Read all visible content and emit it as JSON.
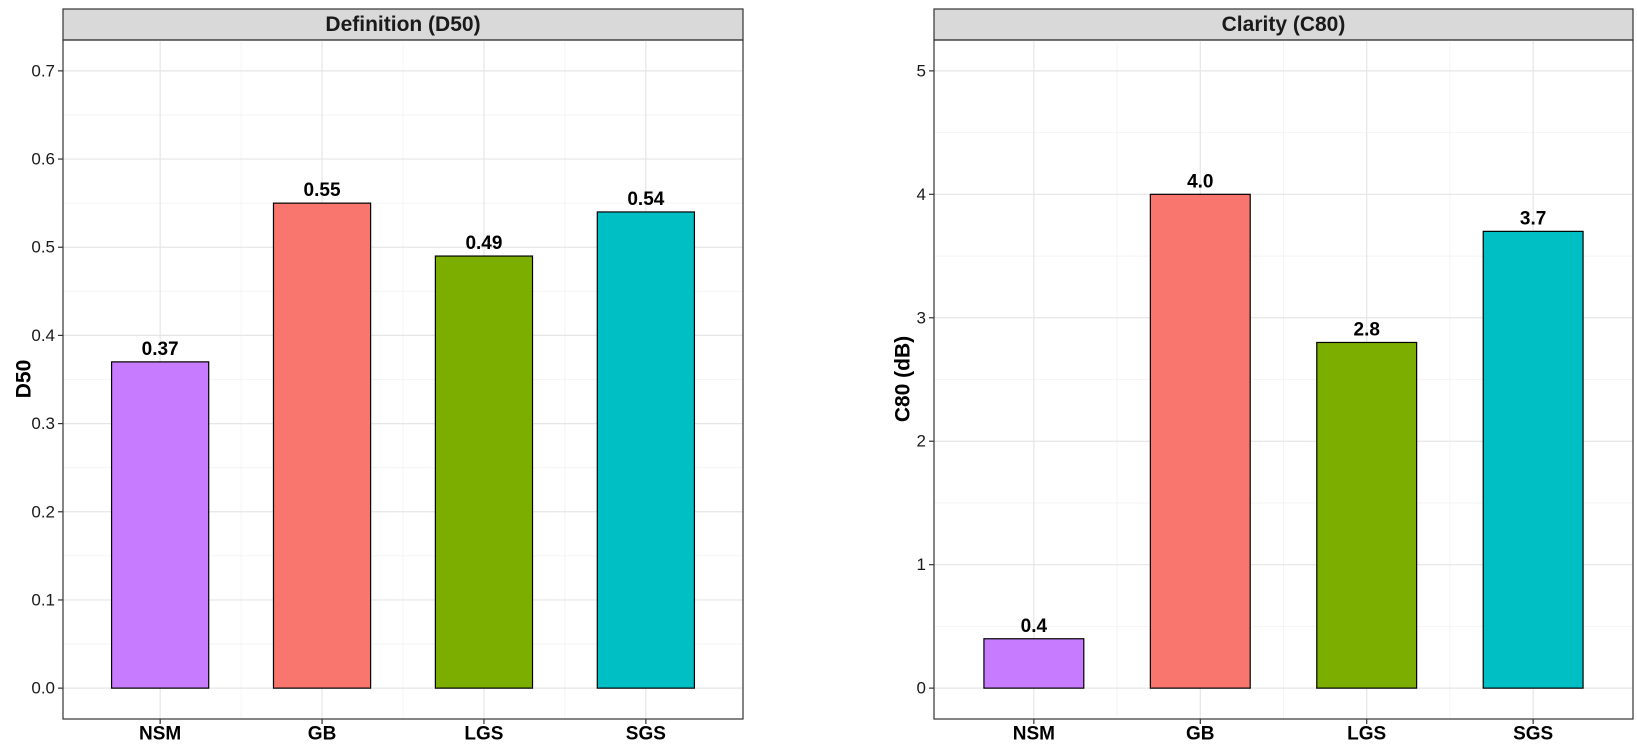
{
  "chart_data": [
    {
      "type": "bar",
      "title": "Definition (D50)",
      "ylabel": "D50",
      "categories": [
        "NSM",
        "GB",
        "LGS",
        "SGS"
      ],
      "values": [
        0.37,
        0.55,
        0.49,
        0.54
      ],
      "value_labels": [
        "0.37",
        "0.55",
        "0.49",
        "0.54"
      ],
      "colors": [
        "#C77CFF",
        "#F8766D",
        "#7CAE00",
        "#00BFC4"
      ],
      "ylim": [
        -0.035,
        0.735
      ],
      "yticks": [
        0.0,
        0.1,
        0.2,
        0.3,
        0.4,
        0.5,
        0.6,
        0.7
      ],
      "ytick_labels": [
        "0.0",
        "0.1",
        "0.2",
        "0.3",
        "0.4",
        "0.5",
        "0.6",
        "0.7"
      ],
      "grid": true,
      "legend": "none"
    },
    {
      "type": "bar",
      "title": "Clarity (C80)",
      "ylabel": "C80 (dB)",
      "categories": [
        "NSM",
        "GB",
        "LGS",
        "SGS"
      ],
      "values": [
        0.4,
        4.0,
        2.8,
        3.7
      ],
      "value_labels": [
        "0.4",
        "4.0",
        "2.8",
        "3.7"
      ],
      "colors": [
        "#C77CFF",
        "#F8766D",
        "#7CAE00",
        "#00BFC4"
      ],
      "ylim": [
        -0.25,
        5.25
      ],
      "yticks": [
        0,
        1,
        2,
        3,
        4,
        5
      ],
      "ytick_labels": [
        "0",
        "1",
        "2",
        "3",
        "4",
        "5"
      ],
      "grid": true,
      "legend": "none"
    }
  ]
}
